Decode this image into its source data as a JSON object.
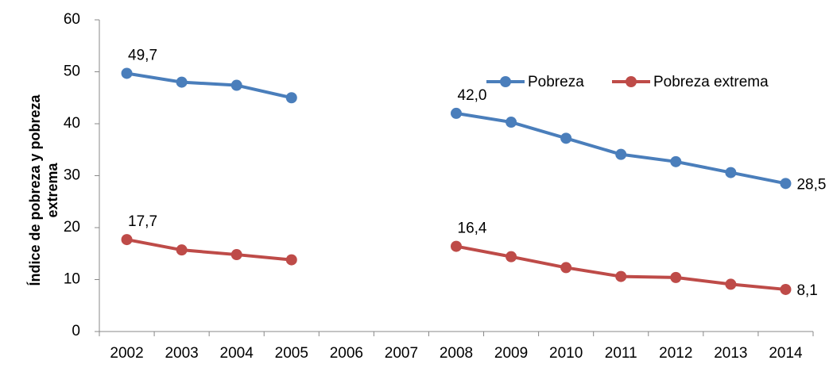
{
  "chart_data": {
    "type": "line",
    "y_label": [
      "Índice de pobreza y pobreza",
      "extrema"
    ],
    "categories": [
      "2002",
      "2003",
      "2004",
      "2005",
      "2006",
      "2007",
      "2008",
      "2009",
      "2010",
      "2011",
      "2012",
      "2013",
      "2014"
    ],
    "series": [
      {
        "name": "Pobreza",
        "color": "#4a7ebb",
        "values": [
          49.7,
          48.0,
          47.4,
          45.0,
          null,
          null,
          42.0,
          40.3,
          37.2,
          34.1,
          32.7,
          30.6,
          28.5
        ],
        "value_labels": [
          "49,7",
          null,
          null,
          null,
          null,
          null,
          "42,0",
          null,
          null,
          null,
          null,
          null,
          "28,5"
        ]
      },
      {
        "name": "Pobreza extrema",
        "color": "#be4b48",
        "values": [
          17.7,
          15.7,
          14.8,
          13.8,
          null,
          null,
          16.4,
          14.4,
          12.3,
          10.6,
          10.4,
          9.1,
          8.1
        ],
        "value_labels": [
          "17,7",
          null,
          null,
          null,
          null,
          null,
          "16,4",
          null,
          null,
          null,
          null,
          null,
          "8,1"
        ]
      }
    ],
    "ylim": [
      0,
      60
    ],
    "yticks": [
      0,
      10,
      20,
      30,
      40,
      50,
      60
    ],
    "grid": false,
    "legend": "top-right"
  }
}
